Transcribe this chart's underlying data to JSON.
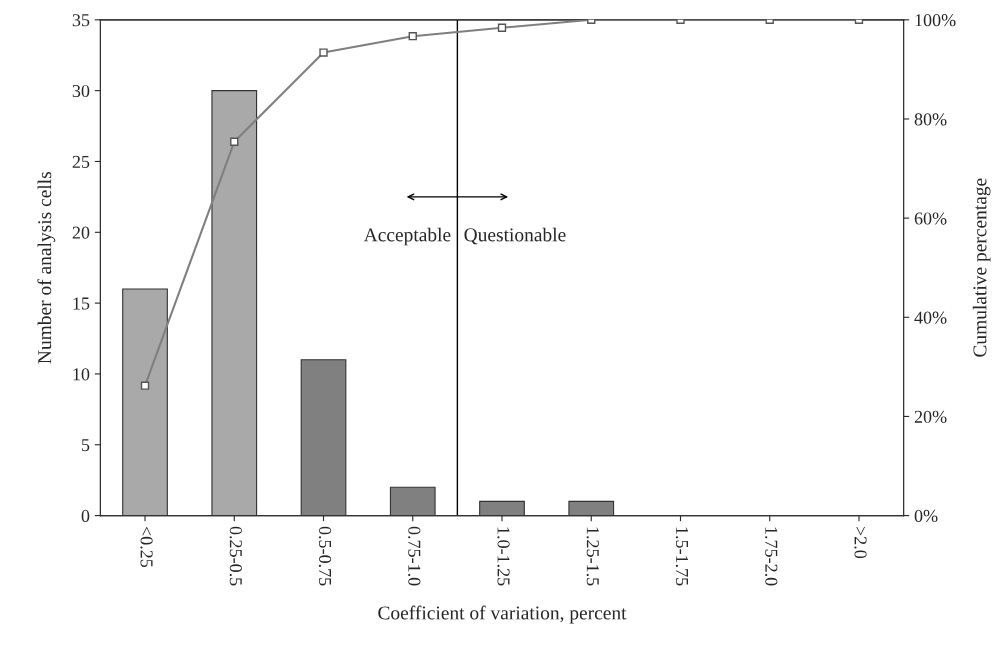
{
  "chart_data": {
    "type": "bar",
    "xlabel": "Coefficient of variation, percent",
    "ylabel": "Number of analysis cells",
    "y2label": "Cumulative percentage",
    "categories": [
      "<0.25",
      "0.25-0.5",
      "0.5-0.75",
      "0.75-1.0",
      "1.0-1.25",
      "1.25-1.5",
      "1.5-1.75",
      "1.75-2.0",
      ">2.0"
    ],
    "series": [
      {
        "colors": [
          "#a9a9a9",
          "#a9a9a9",
          "#808080",
          "#808080",
          "#808080",
          "#808080",
          "#808080",
          "#808080",
          "#808080"
        ],
        "values": [
          16,
          30,
          11,
          2,
          1,
          1,
          0,
          0,
          0
        ]
      },
      {
        "type": "line",
        "axis": "y2",
        "color": "#7f7f7f",
        "marker": "square",
        "line_style": "solid",
        "values": [
          26.2,
          75.4,
          93.4,
          96.7,
          98.4,
          100,
          100,
          100,
          100
        ]
      }
    ],
    "ylim": [
      0,
      35
    ],
    "yticks": [
      0,
      5,
      10,
      15,
      20,
      25,
      30,
      35
    ],
    "y2lim": [
      0,
      100
    ],
    "y2ticks": [
      {
        "value": 0,
        "label": "0%"
      },
      {
        "value": 20,
        "label": "20%"
      },
      {
        "value": 40,
        "label": "40%"
      },
      {
        "value": 60,
        "label": "60%"
      },
      {
        "value": 80,
        "label": "80%"
      },
      {
        "value": 100,
        "label": "100%"
      }
    ],
    "annotations": [
      "Acceptable",
      "Questionable"
    ],
    "grid": false,
    "legend": false
  }
}
